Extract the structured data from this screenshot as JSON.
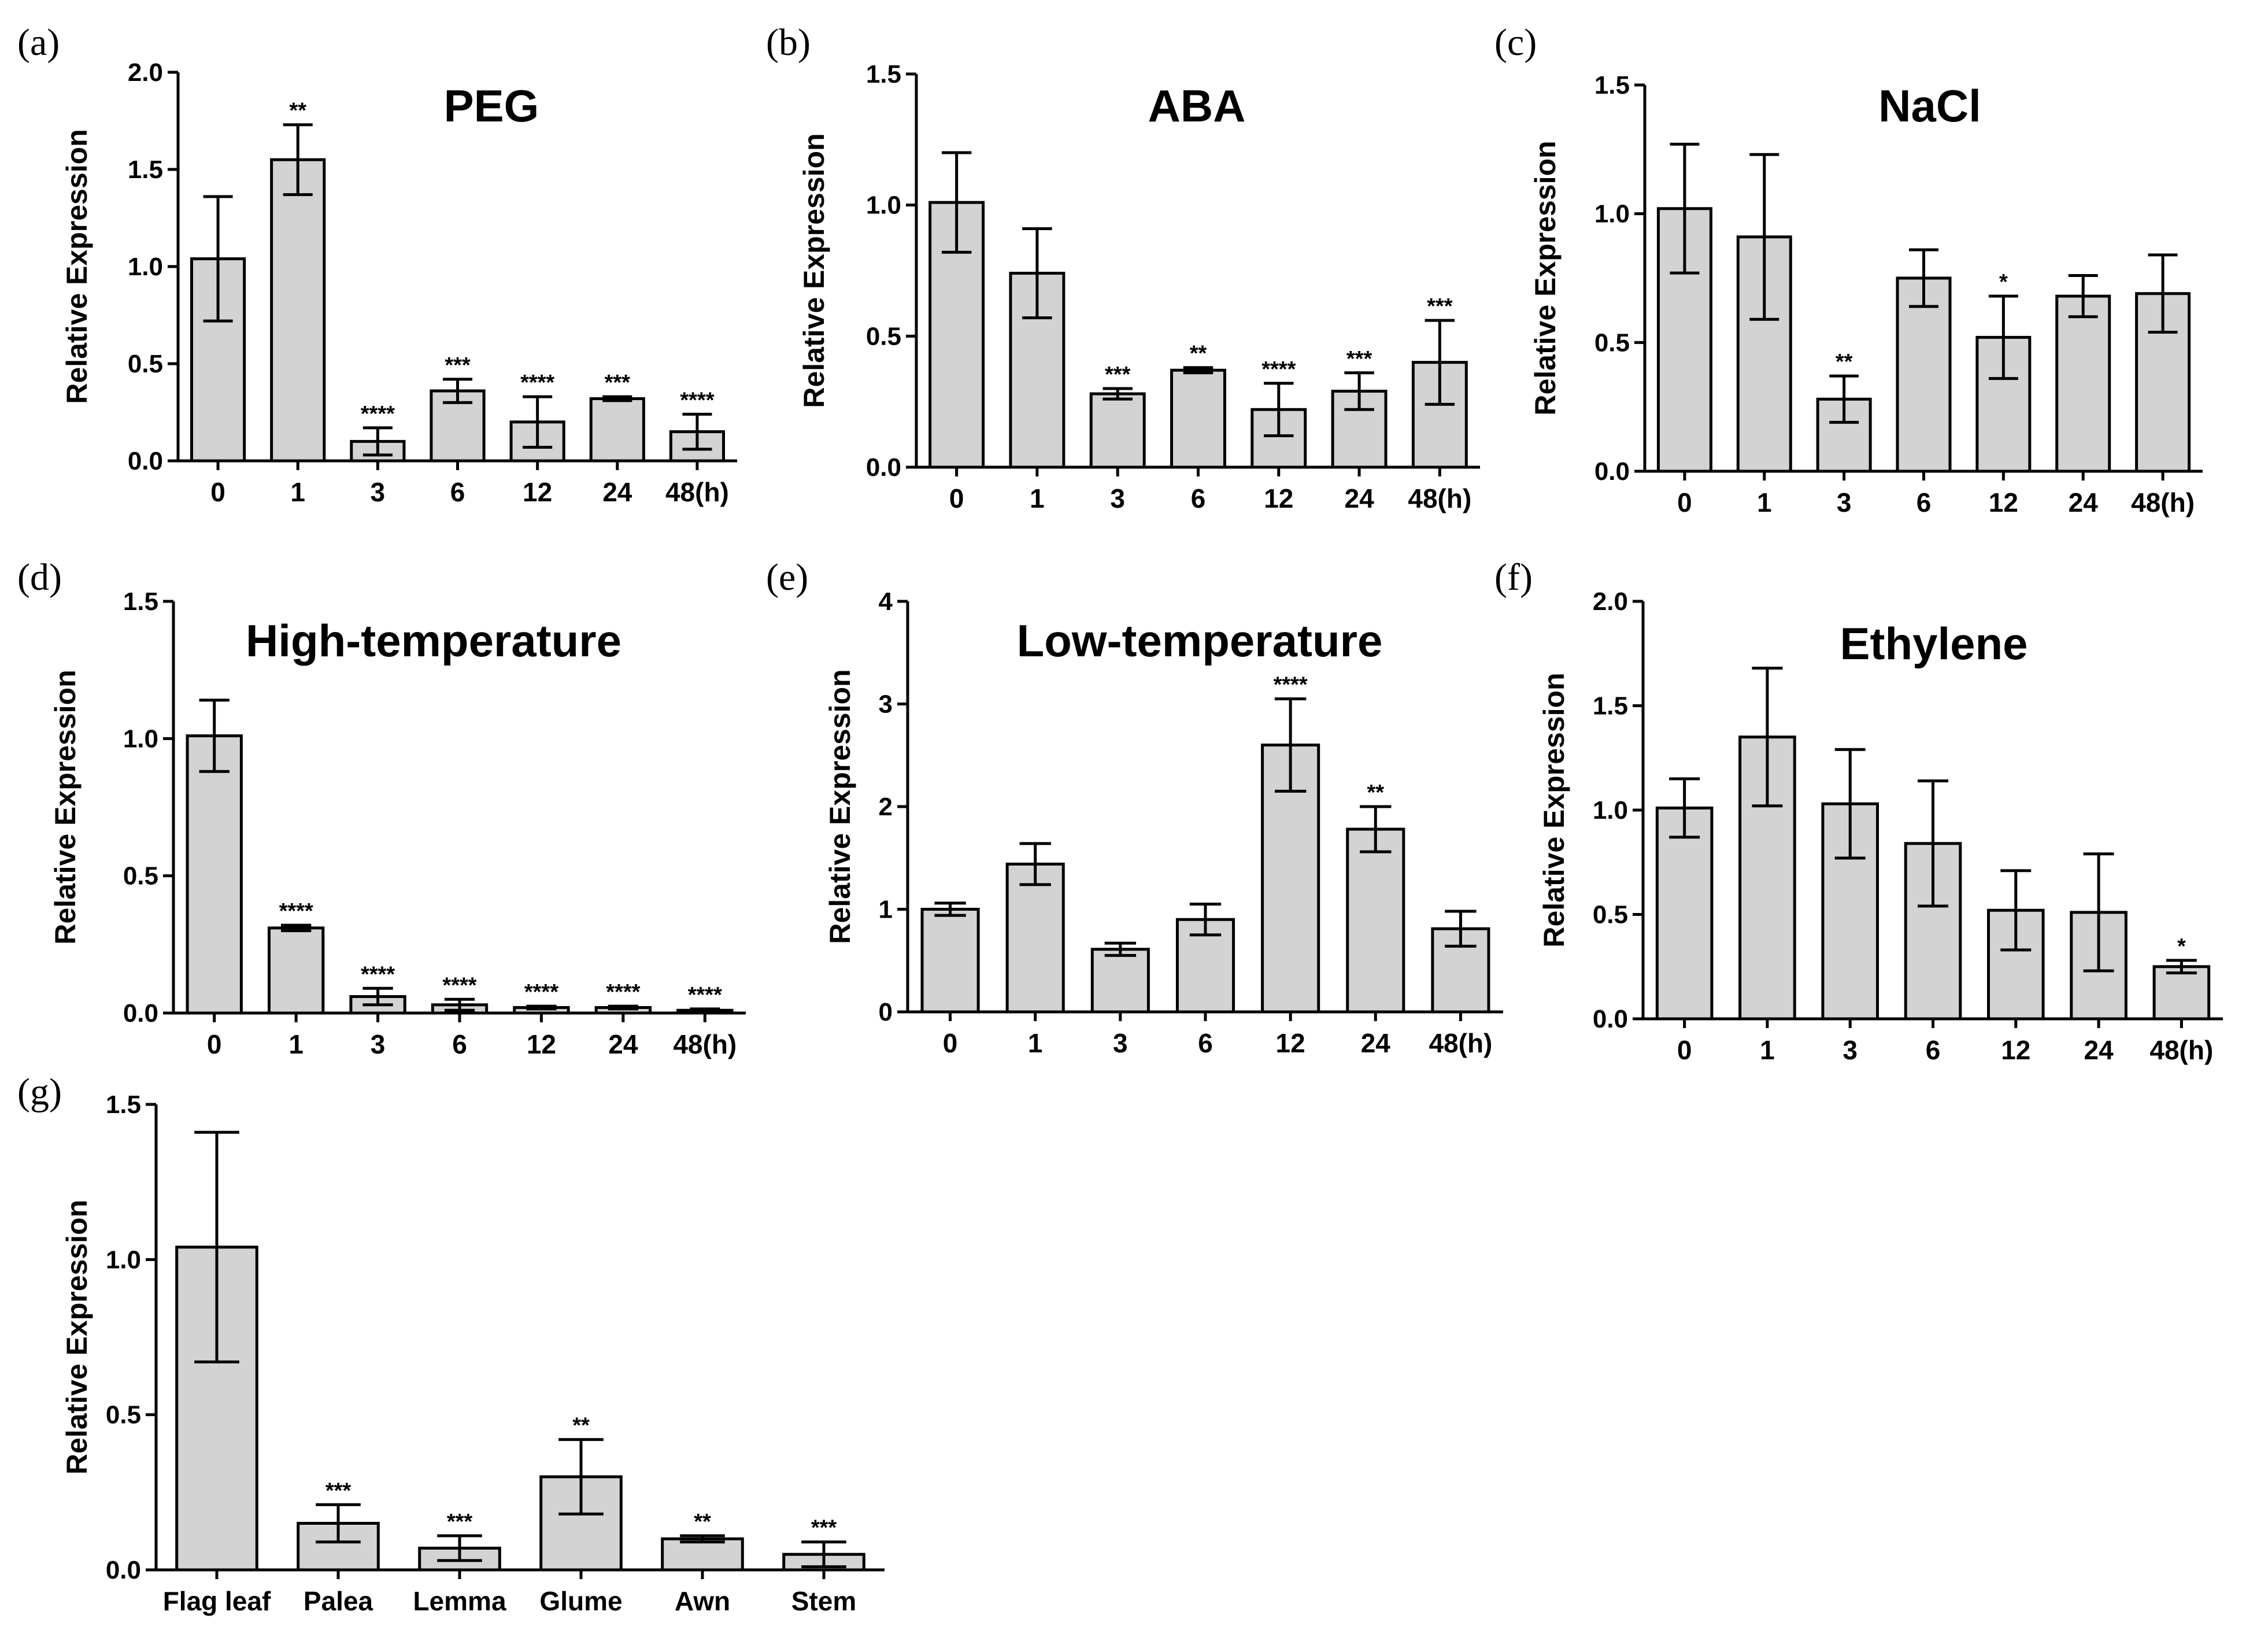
{
  "chart_data": [
    {
      "panel": "(a)",
      "type": "bar",
      "title": "PEG",
      "ylabel": "Relative Expression",
      "ylim": [
        0,
        2.0
      ],
      "yticks": [
        "0.0",
        "0.5",
        "1.0",
        "1.5",
        "2.0"
      ],
      "categories": [
        "0",
        "1",
        "3",
        "6",
        "12",
        "24",
        "48(h)"
      ],
      "values": [
        1.04,
        1.55,
        0.1,
        0.36,
        0.2,
        0.32,
        0.15
      ],
      "errors": [
        0.32,
        0.18,
        0.07,
        0.06,
        0.13,
        0.01,
        0.09
      ],
      "significance": [
        "",
        "**",
        "****",
        "***",
        "****",
        "***",
        "****"
      ]
    },
    {
      "panel": "(b)",
      "type": "bar",
      "title": "ABA",
      "ylabel": "Relative Expression",
      "ylim": [
        0,
        1.5
      ],
      "yticks": [
        "0.0",
        "0.5",
        "1.0",
        "1.5"
      ],
      "categories": [
        "0",
        "1",
        "3",
        "6",
        "12",
        "24",
        "48(h)"
      ],
      "values": [
        1.01,
        0.74,
        0.28,
        0.37,
        0.22,
        0.29,
        0.4
      ],
      "errors": [
        0.19,
        0.17,
        0.02,
        0.01,
        0.1,
        0.07,
        0.16
      ],
      "significance": [
        "",
        "",
        "***",
        "**",
        "****",
        "***",
        "***"
      ]
    },
    {
      "panel": "(c)",
      "type": "bar",
      "title": "NaCl",
      "ylabel": "Relative Expression",
      "ylim": [
        0,
        1.5
      ],
      "yticks": [
        "0.0",
        "0.5",
        "1.0",
        "1.5"
      ],
      "categories": [
        "0",
        "1",
        "3",
        "6",
        "12",
        "24",
        "48(h)"
      ],
      "values": [
        1.02,
        0.91,
        0.28,
        0.75,
        0.52,
        0.68,
        0.69
      ],
      "errors": [
        0.25,
        0.32,
        0.09,
        0.11,
        0.16,
        0.08,
        0.15
      ],
      "significance": [
        "",
        "",
        "**",
        "",
        "*",
        "",
        ""
      ]
    },
    {
      "panel": "(d)",
      "type": "bar",
      "title": "High-temperature",
      "ylabel": "Relative Expression",
      "ylim": [
        0,
        1.5
      ],
      "yticks": [
        "0.0",
        "0.5",
        "1.0",
        "1.5"
      ],
      "categories": [
        "0",
        "1",
        "3",
        "6",
        "12",
        "24",
        "48(h)"
      ],
      "values": [
        1.01,
        0.31,
        0.06,
        0.03,
        0.02,
        0.02,
        0.01
      ],
      "errors": [
        0.13,
        0.01,
        0.03,
        0.02,
        0.005,
        0.005,
        0.005
      ],
      "significance": [
        "",
        "****",
        "****",
        "****",
        "****",
        "****",
        "****"
      ]
    },
    {
      "panel": "(e)",
      "type": "bar",
      "title": "Low-temperature",
      "ylabel": "Relative Expression",
      "ylim": [
        0,
        4
      ],
      "yticks": [
        "0",
        "1",
        "2",
        "3",
        "4"
      ],
      "categories": [
        "0",
        "1",
        "3",
        "6",
        "12",
        "24",
        "48(h)"
      ],
      "values": [
        1.0,
        1.44,
        0.61,
        0.9,
        2.6,
        1.78,
        0.81
      ],
      "errors": [
        0.06,
        0.2,
        0.06,
        0.15,
        0.45,
        0.22,
        0.17
      ],
      "significance": [
        "",
        "",
        "",
        "",
        "****",
        "**",
        ""
      ]
    },
    {
      "panel": "(f)",
      "type": "bar",
      "title": "Ethylene",
      "ylabel": "Relative Expression",
      "ylim": [
        0,
        2.0
      ],
      "yticks": [
        "0.0",
        "0.5",
        "1.0",
        "1.5",
        "2.0"
      ],
      "categories": [
        "0",
        "1",
        "3",
        "6",
        "12",
        "24",
        "48(h)"
      ],
      "values": [
        1.01,
        1.35,
        1.03,
        0.84,
        0.52,
        0.51,
        0.25
      ],
      "errors": [
        0.14,
        0.33,
        0.26,
        0.3,
        0.19,
        0.28,
        0.03
      ],
      "significance": [
        "",
        "",
        "",
        "",
        "",
        "",
        "*"
      ]
    },
    {
      "panel": "(g)",
      "type": "bar",
      "title": "",
      "ylabel": "Relative Expression",
      "ylim": [
        0,
        1.5
      ],
      "yticks": [
        "0.0",
        "0.5",
        "1.0",
        "1.5"
      ],
      "categories": [
        "Flag leaf",
        "Palea",
        "Lemma",
        "Glume",
        "Awn",
        "Stem"
      ],
      "values": [
        1.04,
        0.15,
        0.07,
        0.3,
        0.1,
        0.05
      ],
      "errors": [
        0.37,
        0.06,
        0.04,
        0.12,
        0.01,
        0.04
      ],
      "significance": [
        "",
        "***",
        "***",
        "**",
        "**",
        "***"
      ]
    }
  ]
}
